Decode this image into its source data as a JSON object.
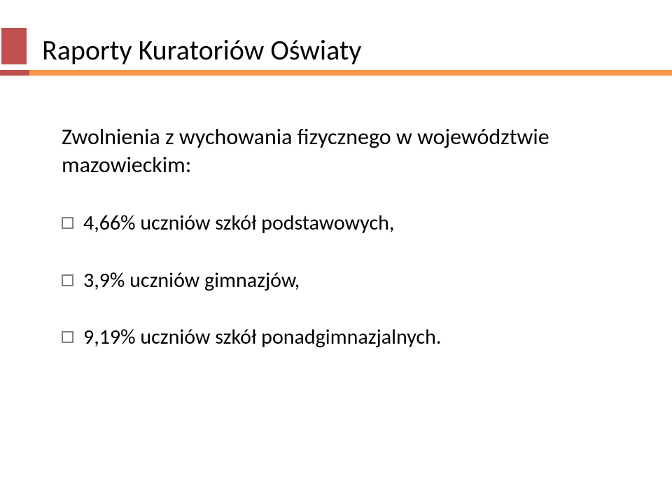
{
  "colors": {
    "red_block": "#c0504d",
    "orange_rule": "#f79646",
    "bullet_border": "#808080",
    "text": "#000000",
    "background": "#ffffff"
  },
  "title": "Raporty Kuratoriów Oświaty",
  "lead": "Zwolnienia z wychowania fizycznego w województwie mazowieckim:",
  "bullets": [
    {
      "text": "4,66% uczniów szkół podstawowych,"
    },
    {
      "text": "3,9% uczniów gimnazjów,"
    },
    {
      "text": "9,19% uczniów szkół ponadgimnazjalnych."
    }
  ]
}
